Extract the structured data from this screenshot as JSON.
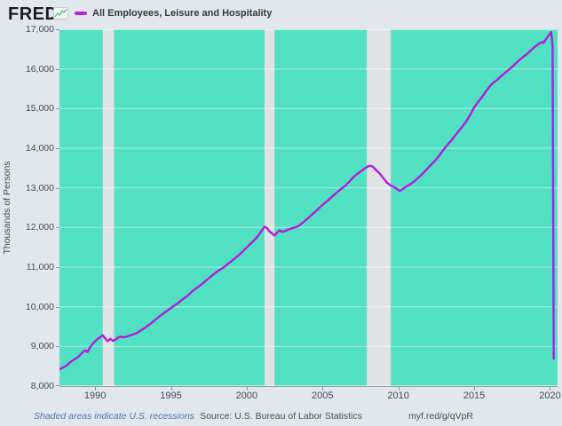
{
  "header": {
    "logo": "FRED",
    "logo_icon": "sparkline-icon",
    "legend": {
      "swatch_color": "#BB22DE",
      "label": "All Employees, Leisure and Hospitality"
    }
  },
  "y_axis": {
    "title": "Thousands of Persons",
    "tick_labels": [
      "17,000",
      "16,000",
      "15,000",
      "14,000",
      "13,000",
      "12,000",
      "11,000",
      "10,000",
      "9,000",
      "8,000"
    ],
    "tick_values": [
      17000,
      16000,
      15000,
      14000,
      13000,
      12000,
      11000,
      10000,
      9000,
      8000
    ]
  },
  "x_axis": {
    "tick_labels": [
      "1990",
      "1995",
      "2000",
      "2005",
      "2010",
      "2015",
      "2020"
    ],
    "tick_values": [
      1990,
      1995,
      2000,
      2005,
      2010,
      2015,
      2020
    ]
  },
  "footer": {
    "recession_note": "Shaded areas indicate U.S. recessions",
    "source": "Source: U.S. Bureau of Labor Statistics",
    "link": "myf.red/g/qVpR"
  },
  "chart_data": {
    "type": "line",
    "title": "All Employees, Leisure and Hospitality",
    "ylabel": "Thousands of Persons",
    "xlabel": "",
    "x_domain": [
      1987.65,
      2020.5
    ],
    "ylim": [
      8000,
      17000
    ],
    "grid": "horizontal",
    "legend_position": "top-left",
    "plot_bg": "#52E0C2",
    "gridline_color": "rgba(255,255,255,0.55)",
    "recession_color": "#E0E3E4",
    "recessions": [
      [
        1990.5,
        1991.25
      ],
      [
        2001.17,
        2001.83
      ],
      [
        2007.92,
        2009.5
      ]
    ],
    "series": [
      {
        "name": "All Employees, Leisure and Hospitality",
        "color": "#AF1FD9",
        "points": [
          [
            1987.67,
            8420
          ],
          [
            1987.83,
            8460
          ],
          [
            1988.0,
            8490
          ],
          [
            1988.17,
            8540
          ],
          [
            1988.33,
            8590
          ],
          [
            1988.5,
            8640
          ],
          [
            1988.67,
            8680
          ],
          [
            1988.83,
            8720
          ],
          [
            1989.0,
            8780
          ],
          [
            1989.17,
            8850
          ],
          [
            1989.33,
            8900
          ],
          [
            1989.5,
            8860
          ],
          [
            1989.67,
            8980
          ],
          [
            1989.83,
            9060
          ],
          [
            1990.0,
            9130
          ],
          [
            1990.17,
            9190
          ],
          [
            1990.33,
            9230
          ],
          [
            1990.5,
            9280
          ],
          [
            1990.67,
            9200
          ],
          [
            1990.83,
            9130
          ],
          [
            1991.0,
            9190
          ],
          [
            1991.17,
            9140
          ],
          [
            1991.33,
            9170
          ],
          [
            1991.5,
            9220
          ],
          [
            1991.67,
            9250
          ],
          [
            1991.83,
            9230
          ],
          [
            1992.0,
            9240
          ],
          [
            1992.25,
            9270
          ],
          [
            1992.5,
            9300
          ],
          [
            1992.75,
            9340
          ],
          [
            1993.0,
            9400
          ],
          [
            1993.25,
            9460
          ],
          [
            1993.5,
            9530
          ],
          [
            1993.75,
            9600
          ],
          [
            1994.0,
            9680
          ],
          [
            1994.25,
            9760
          ],
          [
            1994.5,
            9830
          ],
          [
            1994.75,
            9900
          ],
          [
            1995.0,
            9970
          ],
          [
            1995.25,
            10040
          ],
          [
            1995.5,
            10100
          ],
          [
            1995.75,
            10180
          ],
          [
            1996.0,
            10250
          ],
          [
            1996.25,
            10330
          ],
          [
            1996.5,
            10420
          ],
          [
            1996.75,
            10490
          ],
          [
            1997.0,
            10560
          ],
          [
            1997.25,
            10640
          ],
          [
            1997.5,
            10720
          ],
          [
            1997.75,
            10800
          ],
          [
            1998.0,
            10880
          ],
          [
            1998.25,
            10940
          ],
          [
            1998.5,
            11000
          ],
          [
            1998.75,
            11080
          ],
          [
            1999.0,
            11150
          ],
          [
            1999.25,
            11230
          ],
          [
            1999.5,
            11310
          ],
          [
            1999.75,
            11400
          ],
          [
            2000.0,
            11500
          ],
          [
            2000.25,
            11590
          ],
          [
            2000.5,
            11680
          ],
          [
            2000.75,
            11790
          ],
          [
            2001.0,
            11930
          ],
          [
            2001.17,
            12020
          ],
          [
            2001.33,
            11990
          ],
          [
            2001.5,
            11900
          ],
          [
            2001.67,
            11850
          ],
          [
            2001.83,
            11800
          ],
          [
            2002.0,
            11870
          ],
          [
            2002.17,
            11930
          ],
          [
            2002.33,
            11890
          ],
          [
            2002.5,
            11910
          ],
          [
            2002.75,
            11950
          ],
          [
            2003.0,
            11980
          ],
          [
            2003.25,
            12010
          ],
          [
            2003.5,
            12060
          ],
          [
            2003.75,
            12140
          ],
          [
            2004.0,
            12220
          ],
          [
            2004.25,
            12310
          ],
          [
            2004.5,
            12390
          ],
          [
            2004.75,
            12480
          ],
          [
            2005.0,
            12570
          ],
          [
            2005.25,
            12650
          ],
          [
            2005.5,
            12730
          ],
          [
            2005.75,
            12820
          ],
          [
            2006.0,
            12900
          ],
          [
            2006.25,
            12980
          ],
          [
            2006.5,
            13050
          ],
          [
            2006.75,
            13150
          ],
          [
            2007.0,
            13260
          ],
          [
            2007.25,
            13340
          ],
          [
            2007.5,
            13410
          ],
          [
            2007.75,
            13480
          ],
          [
            2008.0,
            13540
          ],
          [
            2008.17,
            13560
          ],
          [
            2008.33,
            13530
          ],
          [
            2008.5,
            13460
          ],
          [
            2008.75,
            13370
          ],
          [
            2009.0,
            13250
          ],
          [
            2009.25,
            13130
          ],
          [
            2009.5,
            13060
          ],
          [
            2009.75,
            13010
          ],
          [
            2010.0,
            12950
          ],
          [
            2010.08,
            12920
          ],
          [
            2010.25,
            12960
          ],
          [
            2010.5,
            13030
          ],
          [
            2010.75,
            13080
          ],
          [
            2011.0,
            13150
          ],
          [
            2011.25,
            13230
          ],
          [
            2011.5,
            13320
          ],
          [
            2011.75,
            13420
          ],
          [
            2012.0,
            13520
          ],
          [
            2012.25,
            13620
          ],
          [
            2012.5,
            13720
          ],
          [
            2012.75,
            13840
          ],
          [
            2013.0,
            13970
          ],
          [
            2013.25,
            14090
          ],
          [
            2013.5,
            14200
          ],
          [
            2013.75,
            14320
          ],
          [
            2014.0,
            14440
          ],
          [
            2014.25,
            14560
          ],
          [
            2014.5,
            14690
          ],
          [
            2014.75,
            14850
          ],
          [
            2015.0,
            15030
          ],
          [
            2015.25,
            15160
          ],
          [
            2015.5,
            15280
          ],
          [
            2015.75,
            15420
          ],
          [
            2016.0,
            15550
          ],
          [
            2016.25,
            15650
          ],
          [
            2016.5,
            15720
          ],
          [
            2016.75,
            15810
          ],
          [
            2017.0,
            15890
          ],
          [
            2017.25,
            15970
          ],
          [
            2017.5,
            16050
          ],
          [
            2017.75,
            16140
          ],
          [
            2018.0,
            16230
          ],
          [
            2018.25,
            16310
          ],
          [
            2018.5,
            16380
          ],
          [
            2018.75,
            16470
          ],
          [
            2019.0,
            16560
          ],
          [
            2019.25,
            16630
          ],
          [
            2019.5,
            16680
          ],
          [
            2019.58,
            16660
          ],
          [
            2019.75,
            16760
          ],
          [
            2019.92,
            16840
          ],
          [
            2020.08,
            16930
          ],
          [
            2020.17,
            16600
          ],
          [
            2020.25,
            8690
          ]
        ]
      }
    ]
  }
}
